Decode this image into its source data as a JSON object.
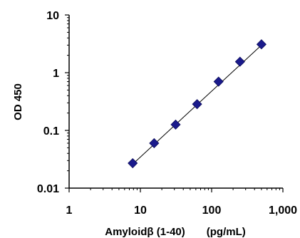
{
  "chart_data": {
    "type": "scatter",
    "title": "",
    "xlabel": "Amyloidβ (1-40)　　(pg/mL)",
    "ylabel": "OD 450",
    "x_scale": "log",
    "y_scale": "log",
    "xlim": [
      1,
      1000
    ],
    "ylim": [
      0.01,
      10
    ],
    "x_ticks": [
      1,
      10,
      100,
      1000
    ],
    "x_tick_labels": [
      "1",
      "10",
      "100",
      "1,000"
    ],
    "y_ticks": [
      0.01,
      0.1,
      1,
      10
    ],
    "y_tick_labels": [
      "0.01",
      "0.1",
      "1",
      "10"
    ],
    "grid": false,
    "legend": "none",
    "marker": "diamond",
    "marker_color": "#1a1a8c",
    "fit_line_color": "#000000",
    "series": [
      {
        "x": [
          7.8,
          15.6,
          31.25,
          62.5,
          125,
          250,
          500
        ],
        "y": [
          0.027,
          0.06,
          0.126,
          0.285,
          0.7,
          1.55,
          3.1
        ]
      }
    ],
    "fit_line": {
      "x": [
        7.8,
        500
      ],
      "y": [
        0.026,
        3.0
      ]
    }
  }
}
